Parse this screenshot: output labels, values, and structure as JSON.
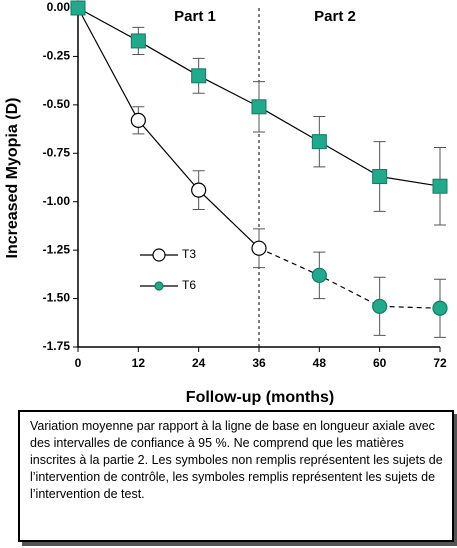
{
  "chart_data": {
    "type": "line",
    "x_label": "Follow-up (months)",
    "y_label": "Increased Myopia (D)",
    "annotations": [
      "Part 1",
      "Part 2"
    ],
    "divider_x": 36,
    "x": [
      0,
      12,
      24,
      36,
      48,
      60,
      72
    ],
    "series": [
      {
        "name": "T3",
        "color": "#20a98b",
        "marker": "circle",
        "filled": false,
        "values": [
          0,
          -0.58,
          -0.94,
          -1.24,
          -1.38,
          -1.54,
          -1.55
        ],
        "errors": [
          0,
          0.07,
          0.1,
          0.1,
          0.12,
          0.15,
          0.15
        ]
      },
      {
        "name": "T6",
        "color": "#20a98b",
        "marker": "square",
        "filled": true,
        "values": [
          0,
          -0.17,
          -0.35,
          -0.51,
          -0.69,
          -0.87,
          -0.92
        ],
        "errors": [
          0,
          0.07,
          0.09,
          0.13,
          0.13,
          0.18,
          0.2
        ]
      }
    ],
    "xlim": [
      0,
      72
    ],
    "xticks": [
      0,
      12,
      24,
      36,
      48,
      60,
      72
    ],
    "ylim": [
      -1.75,
      0
    ],
    "yticks": [
      {
        "value": 0,
        "label": "0.00"
      },
      -0.25,
      {
        "value": -0.5,
        "label": "-0.50"
      },
      -0.75,
      {
        "value": -1,
        "label": "-1.00"
      },
      -1.25,
      {
        "value": -1.5,
        "label": "-1.50"
      },
      -1.75
    ],
    "caption": "Variation moyenne par rapport à la ligne de base en longueur axiale avec des intervalles de confiance à 95 %. Ne comprend que les matières inscrites à la partie 2. Les symboles non remplis représentent les sujets de l’intervention de contrôle, les symboles remplis représentent les sujets de l’intervention de test."
  }
}
